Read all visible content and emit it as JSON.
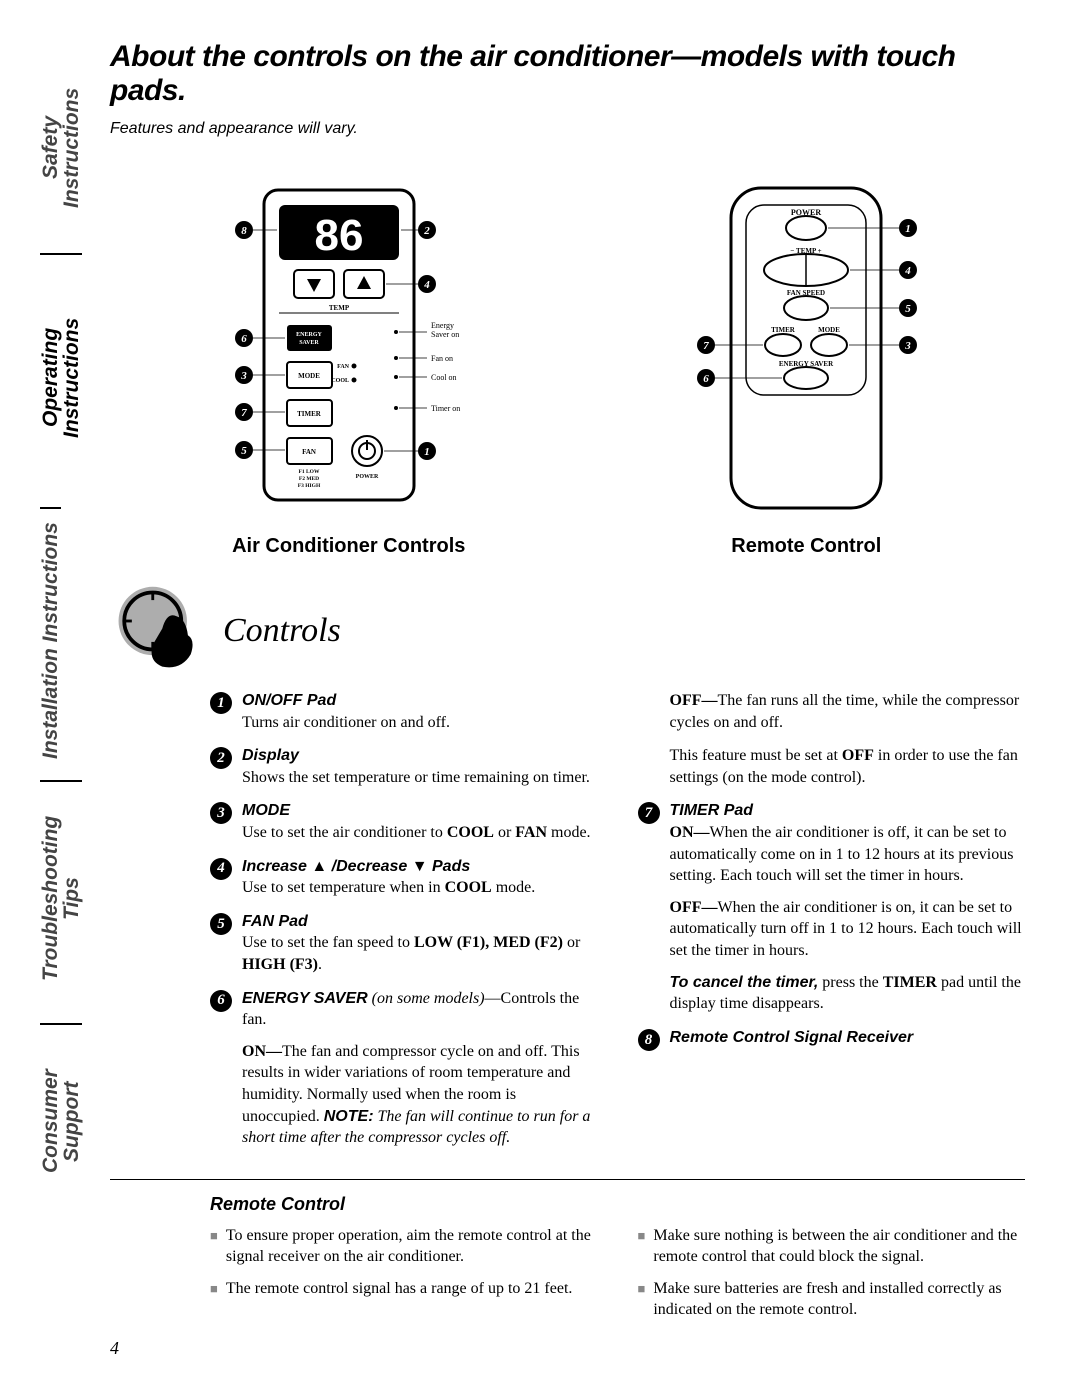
{
  "sidebar": {
    "tabs": [
      "Safety Instructions",
      "Operating Instructions",
      "Installation Instructions",
      "Troubleshooting Tips",
      "Consumer Support"
    ],
    "active_index": 1
  },
  "title": "About the controls on the air conditioner—models with touch pads.",
  "subtitle": "Features and appearance will vary.",
  "diagrams": {
    "ac": {
      "label": "Air Conditioner Controls",
      "display_value": "86",
      "buttons": {
        "energy_saver": "ENERGY\nSAVER",
        "mode": "MODE",
        "timer": "TIMER",
        "fan": "FAN",
        "temp_label": "TEMP",
        "power_label": "POWER",
        "fan_levels": "F1 LOW\nF2 MED\nF3 HIGH",
        "mode_fan": "FAN",
        "mode_cool": "COOL"
      },
      "indicators": [
        "Energy Saver on",
        "Fan on",
        "Cool on",
        "Timer on"
      ],
      "callouts_left": [
        "8",
        "6",
        "3",
        "7",
        "5"
      ],
      "callouts_right": [
        "2",
        "4",
        "1"
      ]
    },
    "remote": {
      "label": "Remote Control",
      "buttons": {
        "power": "POWER",
        "temp": "− TEMP +",
        "fan_speed": "FAN SPEED",
        "timer": "TIMER",
        "mode": "MODE",
        "energy_saver": "ENERGY SAVER"
      },
      "callouts_left": [
        "7",
        "6"
      ],
      "callouts_right": [
        "1",
        "4",
        "5",
        "3"
      ]
    }
  },
  "section_heading": "Controls",
  "controls_left": [
    {
      "n": "1",
      "title": "ON/OFF Pad",
      "body": "Turns air conditioner on and off."
    },
    {
      "n": "2",
      "title": "Display",
      "body": "Shows the set temperature or time remaining on timer."
    },
    {
      "n": "3",
      "title": "MODE",
      "body_html": "Use to set the air conditioner to <b>COOL</b> or <b>FAN</b> mode."
    },
    {
      "n": "4",
      "title": "Increase ▲ /Decrease ▼ Pads",
      "body_html": "Use to set temperature when in <b>COOL</b> mode."
    },
    {
      "n": "5",
      "title": "FAN Pad",
      "body_html": "Use to set the fan speed to <b>LOW (F1), MED (F2)</b> or <b>HIGH (F3)</b>."
    },
    {
      "n": "6",
      "title": "",
      "body_html": "<span class='ctrl-title'>ENERGY SAVER</span> <i>(on some models)</i>—Controls the fan.",
      "extra_html": "<b>ON—</b>The fan and compressor cycle on and off. This results in wider variations of room temperature and humidity. Normally used when the room is unoccupied. <span class='bold-ital'>NOTE:</span> <i>The fan will continue to run for a short time after the compressor cycles off.</i>"
    }
  ],
  "controls_right": [
    {
      "pre_html": "<b>OFF—</b>The fan runs all the time, while the compressor cycles on and off.",
      "post_html": "This feature must be set at <b>OFF</b> in order to use the fan settings (on the mode control)."
    },
    {
      "n": "7",
      "title": "TIMER Pad",
      "body_html": "<b>ON—</b>When the air conditioner is off, it can be set to automatically come on in 1 to 12 hours at its previous setting. Each touch will set the timer in hours.",
      "extra_html": "<b>OFF—</b>When the air conditioner is on, it can be set to automatically turn off in 1 to 12 hours. Each touch will set the timer in hours.",
      "extra2_html": "<span class='bold-ital'>To cancel the timer,</span> press the <b>TIMER</b> pad until the display time disappears."
    },
    {
      "n": "8",
      "title": "Remote Control Signal Receiver",
      "body_html": ""
    }
  ],
  "remote_section": {
    "title": "Remote Control",
    "left": [
      "To ensure proper operation, aim the remote control at the signal receiver on the air conditioner.",
      "The remote control signal has a range of up to 21 feet."
    ],
    "right": [
      "Make sure nothing is between the air conditioner and the remote control that could block the signal.",
      "Make sure batteries are fresh and installed correctly as indicated on the remote control."
    ]
  },
  "page_number": "4",
  "colors": {
    "text": "#000000",
    "muted": "#444444",
    "bg": "#ffffff",
    "gray": "#adadad"
  }
}
